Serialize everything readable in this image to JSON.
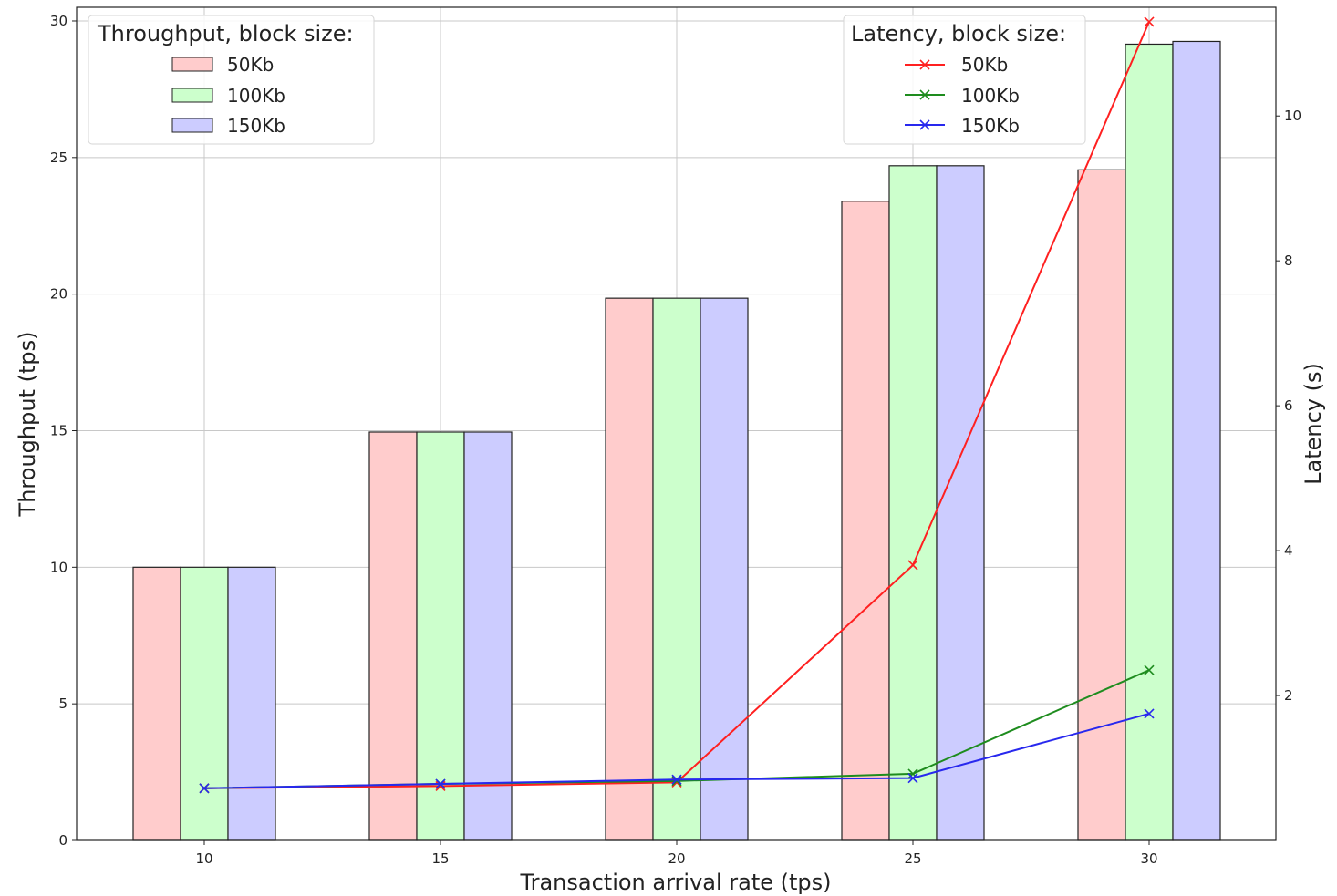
{
  "chart_data": {
    "type": "bar",
    "xlabel": "Transaction arrival rate (tps)",
    "ylabel": "Throughput (tps)",
    "y2label": "Latency (s)",
    "categories": [
      "10",
      "15",
      "20",
      "25",
      "30"
    ],
    "ylim": [
      0,
      30.5
    ],
    "y2lim": [
      0,
      11.5
    ],
    "yticks": [
      "0",
      "5",
      "10",
      "15",
      "20",
      "25",
      "30"
    ],
    "y2ticks": [
      "2",
      "4",
      "6",
      "8",
      "10"
    ],
    "grid": true,
    "throughput_legend": {
      "title": "Throughput, block size:",
      "placement": "top-left"
    },
    "latency_legend": {
      "title": "Latency, block size:",
      "placement": "top-right"
    },
    "throughput_series": [
      {
        "name": "50Kb",
        "fill": "#ffcccc",
        "values": [
          10.0,
          14.95,
          19.85,
          23.4,
          24.55
        ]
      },
      {
        "name": "100Kb",
        "fill": "#ccffcc",
        "values": [
          10.0,
          14.95,
          19.85,
          24.7,
          29.15
        ]
      },
      {
        "name": "150Kb",
        "fill": "#ccccff",
        "values": [
          10.0,
          14.95,
          19.85,
          24.7,
          29.25
        ]
      }
    ],
    "latency_series": [
      {
        "name": "50Kb",
        "color": "#ff2020",
        "values": [
          0.72,
          0.75,
          0.8,
          3.8,
          11.3
        ]
      },
      {
        "name": "100Kb",
        "color": "#1e8c1e",
        "values": [
          0.72,
          0.78,
          0.82,
          0.92,
          2.35
        ]
      },
      {
        "name": "150Kb",
        "color": "#2828ee",
        "values": [
          0.72,
          0.78,
          0.84,
          0.86,
          1.75
        ]
      }
    ]
  }
}
